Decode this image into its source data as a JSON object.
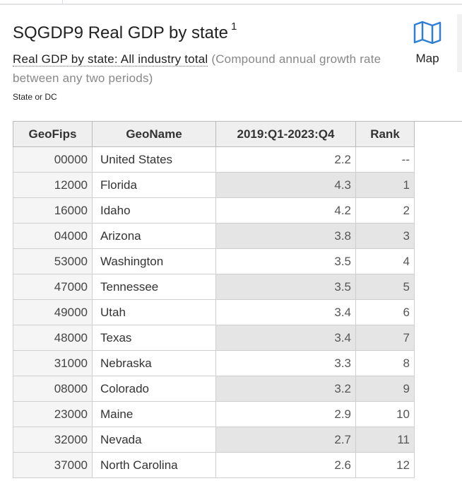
{
  "header": {
    "title": "SQGDP9 Real GDP by state",
    "footnote": "1",
    "subtitle_link": "Real GDP by state: All industry total",
    "subtitle_note": "(Compound annual growth rate between any two periods)",
    "geo_label": "State or DC",
    "map_button": "Map"
  },
  "table": {
    "columns": [
      "GeoFips",
      "GeoName",
      "2019:Q1-2023:Q4",
      "Rank"
    ],
    "rows": [
      [
        "00000",
        "United States",
        2.2,
        "--"
      ],
      [
        "12000",
        "Florida",
        4.3,
        1
      ],
      [
        "16000",
        "Idaho",
        4.2,
        2
      ],
      [
        "04000",
        "Arizona",
        3.8,
        3
      ],
      [
        "53000",
        "Washington",
        3.5,
        4
      ],
      [
        "47000",
        "Tennessee",
        3.5,
        5
      ],
      [
        "49000",
        "Utah",
        3.4,
        6
      ],
      [
        "48000",
        "Texas",
        3.4,
        7
      ],
      [
        "31000",
        "Nebraska",
        3.3,
        8
      ],
      [
        "08000",
        "Colorado",
        3.2,
        9
      ],
      [
        "23000",
        "Maine",
        2.9,
        10
      ],
      [
        "32000",
        "Nevada",
        2.7,
        11
      ],
      [
        "37000",
        "North Carolina",
        2.6,
        12
      ]
    ]
  }
}
